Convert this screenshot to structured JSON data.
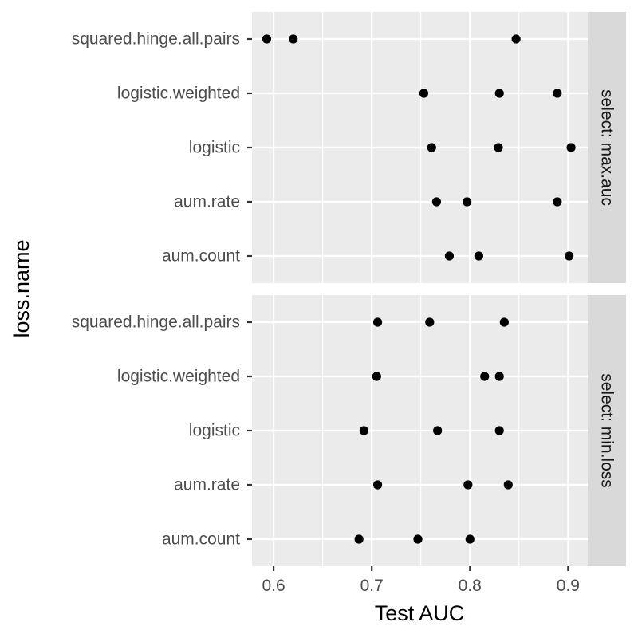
{
  "chart_data": {
    "type": "scatter",
    "xlabel": "Test AUC",
    "ylabel": "loss.name",
    "xlim": [
      0.578,
      0.92
    ],
    "x_ticks": [
      0.6,
      0.7,
      0.8,
      0.9
    ],
    "x_tick_labels": [
      "0.6",
      "0.7",
      "0.8",
      "0.9"
    ],
    "categories": [
      "squared.hinge.all.pairs",
      "logistic.weighted",
      "logistic",
      "aum.rate",
      "aum.count"
    ],
    "grid": true,
    "facets": [
      {
        "label": "select: max.auc",
        "points": [
          {
            "loss": "squared.hinge.all.pairs",
            "values": [
              0.593,
              0.62,
              0.847
            ]
          },
          {
            "loss": "logistic.weighted",
            "values": [
              0.753,
              0.83,
              0.889
            ]
          },
          {
            "loss": "logistic",
            "values": [
              0.761,
              0.829,
              0.903
            ]
          },
          {
            "loss": "aum.rate",
            "values": [
              0.766,
              0.797,
              0.889
            ]
          },
          {
            "loss": "aum.count",
            "values": [
              0.779,
              0.809,
              0.901
            ]
          }
        ]
      },
      {
        "label": "select: min.loss",
        "points": [
          {
            "loss": "squared.hinge.all.pairs",
            "values": [
              0.706,
              0.759,
              0.835
            ]
          },
          {
            "loss": "logistic.weighted",
            "values": [
              0.705,
              0.815,
              0.83
            ]
          },
          {
            "loss": "logistic",
            "values": [
              0.692,
              0.767,
              0.83
            ]
          },
          {
            "loss": "aum.rate",
            "values": [
              0.706,
              0.798,
              0.839
            ]
          },
          {
            "loss": "aum.count",
            "values": [
              0.687,
              0.747,
              0.8
            ]
          }
        ]
      }
    ]
  }
}
